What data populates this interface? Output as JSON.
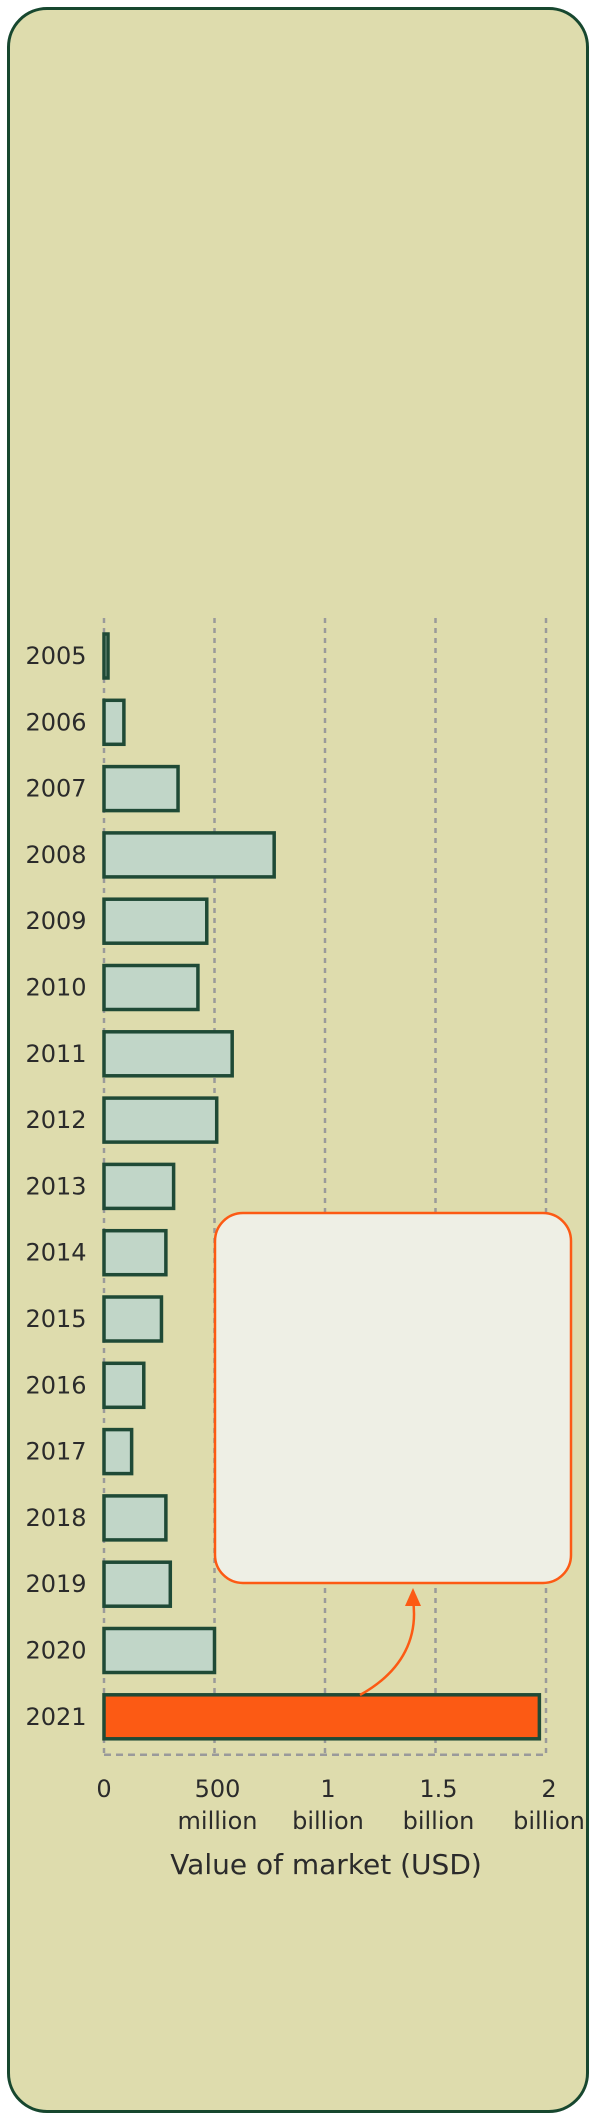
{
  "chart_data": {
    "type": "bar",
    "orientation": "horizontal",
    "categories": [
      "2005",
      "2006",
      "2007",
      "2008",
      "2009",
      "2010",
      "2011",
      "2012",
      "2013",
      "2014",
      "2015",
      "2016",
      "2017",
      "2018",
      "2019",
      "2020",
      "2021"
    ],
    "values": [
      12,
      90,
      335,
      770,
      465,
      425,
      580,
      510,
      315,
      280,
      260,
      180,
      125,
      280,
      300,
      500,
      1970
    ],
    "highlight_category": "2021",
    "xlabel": "Value of market (USD)",
    "xlim": [
      0,
      2000000000
    ],
    "x_ticks": [
      {
        "value": 0,
        "lines": [
          "0"
        ]
      },
      {
        "value": 500,
        "lines": [
          "500",
          "million"
        ]
      },
      {
        "value": 1000,
        "lines": [
          "1",
          "billion"
        ]
      },
      {
        "value": 1500,
        "lines": [
          "1.5",
          "billion"
        ]
      },
      {
        "value": 2000,
        "lines": [
          "2",
          "billion"
        ]
      }
    ],
    "value_unit": "million USD",
    "grid": true,
    "colors": {
      "bar_fill": "#c1d6c8",
      "bar_stroke": "#1f4a36",
      "highlight_fill": "#fc5a14",
      "grid": "#9a9a9a",
      "card_bg": "#dedcad",
      "annotation_fill": "#eeefe5",
      "annotation_stroke": "#fc5a14"
    }
  }
}
